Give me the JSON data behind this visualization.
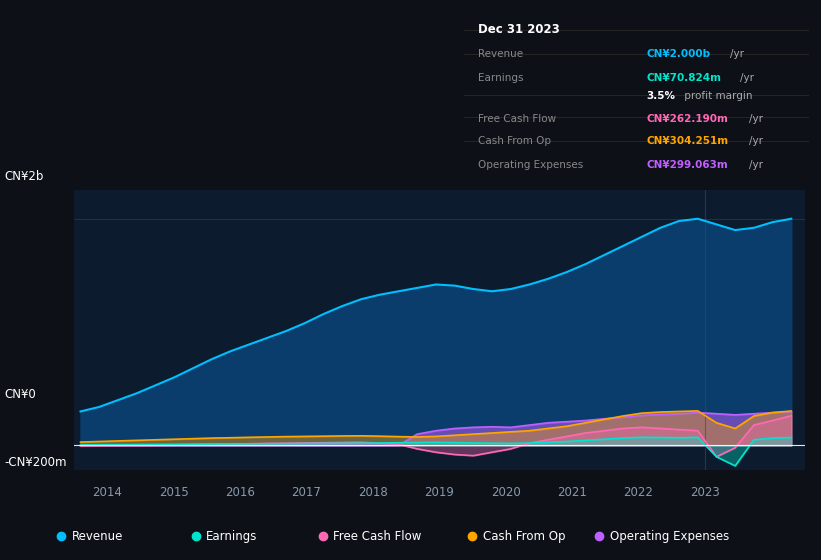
{
  "background_color": "#0d1117",
  "plot_bg_color": "#0d1b2e",
  "title_box": {
    "date": "Dec 31 2023",
    "rows": [
      {
        "label": "Revenue",
        "value": "CN¥2.000b",
        "unit": "/yr",
        "value_color": "#00bfff"
      },
      {
        "label": "Earnings",
        "value": "CN¥70.824m",
        "unit": "/yr",
        "value_color": "#00e5cc"
      },
      {
        "label": "",
        "value": "3.5%",
        "unit": " profit margin",
        "value_color": "#ffffff"
      },
      {
        "label": "Free Cash Flow",
        "value": "CN¥262.190m",
        "unit": "/yr",
        "value_color": "#ff69b4"
      },
      {
        "label": "Cash From Op",
        "value": "CN¥304.251m",
        "unit": "/yr",
        "value_color": "#ffa500"
      },
      {
        "label": "Operating Expenses",
        "value": "CN¥299.063m",
        "unit": "/yr",
        "value_color": "#bf5fff"
      }
    ]
  },
  "ylabel_top": "CN¥2b",
  "ylabel_zero": "CN¥0",
  "ylabel_neg": "-CN¥200m",
  "x_ticks": [
    2014,
    2015,
    2016,
    2017,
    2018,
    2019,
    2020,
    2021,
    2022,
    2023
  ],
  "revenue_color": "#00bfff",
  "revenue_fill": "#0a3d6b",
  "earnings_color": "#00e5cc",
  "fcf_color": "#ff69b4",
  "cashfromop_color": "#ffa500",
  "opex_color": "#bf5fff",
  "legend": [
    {
      "label": "Revenue",
      "color": "#00bfff"
    },
    {
      "label": "Earnings",
      "color": "#00e5cc"
    },
    {
      "label": "Free Cash Flow",
      "color": "#ff69b4"
    },
    {
      "label": "Cash From Op",
      "color": "#ffa500"
    },
    {
      "label": "Operating Expenses",
      "color": "#bf5fff"
    }
  ],
  "revenue": [
    300,
    340,
    400,
    460,
    530,
    600,
    680,
    760,
    830,
    890,
    950,
    1010,
    1080,
    1160,
    1230,
    1290,
    1330,
    1360,
    1390,
    1420,
    1410,
    1380,
    1360,
    1380,
    1420,
    1470,
    1530,
    1600,
    1680,
    1760,
    1840,
    1920,
    1980,
    2000,
    1950,
    1900,
    1920,
    1970,
    2000
  ],
  "earnings": [
    5,
    6,
    7,
    8,
    9,
    10,
    11,
    12,
    13,
    14,
    15,
    16,
    17,
    18,
    19,
    20,
    22,
    24,
    26,
    28,
    25,
    22,
    20,
    18,
    22,
    28,
    35,
    45,
    55,
    65,
    72,
    70,
    68,
    72,
    -100,
    -180,
    50,
    65,
    70
  ],
  "fcf": [
    -5,
    -3,
    -2,
    -1,
    0,
    5,
    8,
    10,
    12,
    15,
    18,
    20,
    22,
    24,
    26,
    28,
    20,
    10,
    -30,
    -60,
    -80,
    -90,
    -60,
    -30,
    20,
    50,
    80,
    110,
    130,
    150,
    160,
    150,
    140,
    130,
    -100,
    -20,
    180,
    220,
    262
  ],
  "cashfromop": [
    30,
    35,
    40,
    45,
    50,
    55,
    60,
    65,
    68,
    72,
    75,
    78,
    80,
    82,
    84,
    85,
    82,
    78,
    75,
    80,
    90,
    100,
    110,
    120,
    130,
    150,
    170,
    200,
    230,
    260,
    285,
    295,
    300,
    305,
    200,
    150,
    260,
    290,
    304
  ],
  "opex": [
    0,
    0,
    0,
    0,
    0,
    0,
    0,
    0,
    0,
    0,
    0,
    0,
    0,
    0,
    0,
    0,
    0,
    0,
    100,
    130,
    150,
    160,
    165,
    160,
    180,
    200,
    210,
    220,
    235,
    250,
    265,
    275,
    280,
    290,
    280,
    270,
    280,
    290,
    299
  ]
}
